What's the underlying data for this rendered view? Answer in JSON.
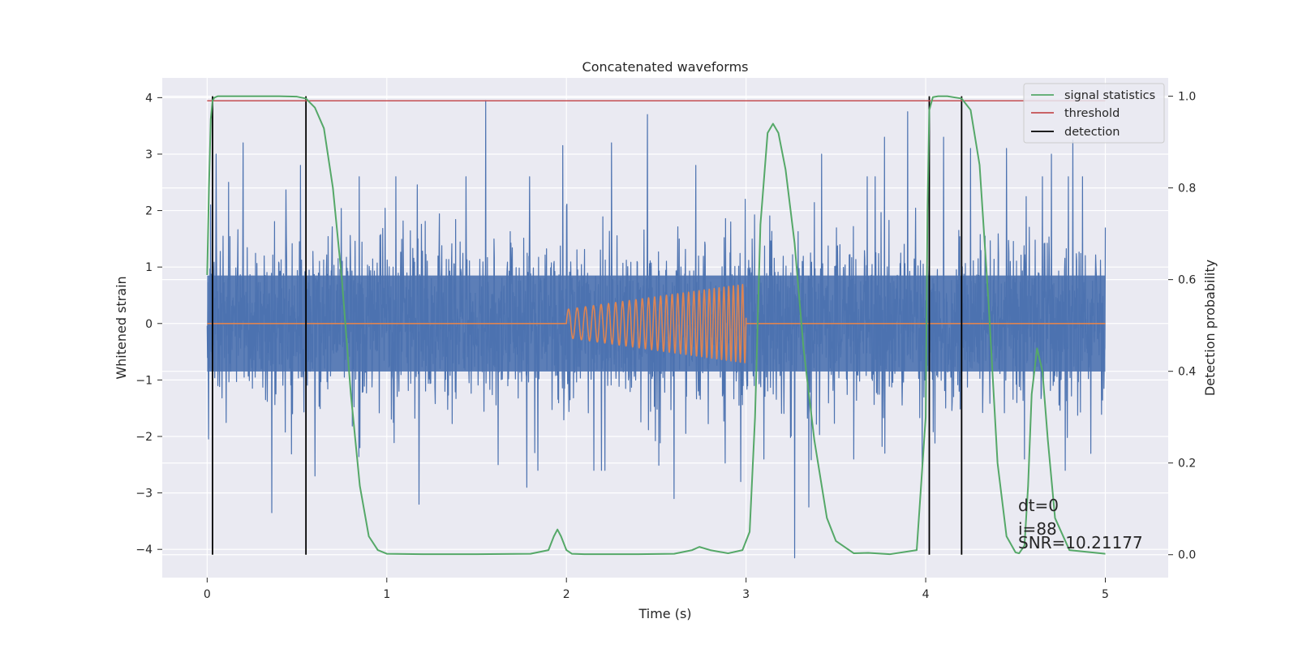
{
  "chart_data": {
    "type": "line",
    "title": "Concatenated waveforms",
    "xlabel": "Time (s)",
    "ylabel": "Whitened strain",
    "y2label": "Detection probability",
    "xlim": [
      -0.25,
      5.35
    ],
    "ylim": [
      -4.5,
      4.35
    ],
    "y2lim": [
      -0.05,
      1.04
    ],
    "xticks": [
      0,
      1,
      2,
      3,
      4,
      5
    ],
    "yticks": [
      -4,
      -3,
      -2,
      -1,
      0,
      1,
      2,
      3,
      4
    ],
    "y2ticks": [
      0.0,
      0.2,
      0.4,
      0.6,
      0.8,
      1.0
    ],
    "y2tick_labels": [
      "0.0",
      "0.2",
      "0.4",
      "0.6",
      "0.8",
      "1.0"
    ],
    "grid": true,
    "legend_position": "top-right",
    "colors": {
      "noise": "#4c72b0",
      "template": "#dd8452",
      "signal_statistics": "#55a868",
      "threshold": "#c44e52",
      "detection": "#000000",
      "background": "#eaeaf2",
      "grid": "#ffffff"
    },
    "series": [
      {
        "id": "noise",
        "axis": "left",
        "style": "noise",
        "x_range": [
          0,
          5
        ],
        "envelope_core": 0.85,
        "peaks": [
          [
            0.02,
            2.1
          ],
          [
            0.05,
            3.0
          ],
          [
            0.12,
            2.5
          ],
          [
            0.2,
            3.2
          ],
          [
            0.36,
            -3.35
          ],
          [
            0.52,
            2.8
          ],
          [
            0.6,
            -2.7
          ],
          [
            0.85,
            -2.2
          ],
          [
            1.05,
            2.6
          ],
          [
            1.18,
            -3.2
          ],
          [
            1.55,
            3.95
          ],
          [
            1.62,
            -2.5
          ],
          [
            1.78,
            -2.9
          ],
          [
            1.98,
            3.15
          ],
          [
            2.25,
            3.2
          ],
          [
            2.45,
            3.7
          ],
          [
            2.6,
            -3.1
          ],
          [
            2.72,
            2.8
          ],
          [
            2.97,
            -2.8
          ],
          [
            3.1,
            -2.4
          ],
          [
            3.27,
            -4.15
          ],
          [
            3.35,
            -3.25
          ],
          [
            3.42,
            3.0
          ],
          [
            3.6,
            -2.4
          ],
          [
            3.77,
            3.3
          ],
          [
            3.9,
            3.75
          ],
          [
            3.98,
            -2.6
          ],
          [
            4.1,
            3.3
          ],
          [
            4.25,
            3.1
          ],
          [
            4.45,
            3.1
          ],
          [
            4.55,
            -2.4
          ],
          [
            4.7,
            3.0
          ],
          [
            4.82,
            3.25
          ],
          [
            4.92,
            -2.3
          ],
          [
            5.0,
            1.7
          ]
        ]
      },
      {
        "id": "template",
        "axis": "left",
        "style": "chirp",
        "x_range": [
          0,
          5
        ],
        "chirp_range": [
          2.0,
          3.0
        ],
        "amplitude_range": [
          0.25,
          0.7
        ]
      },
      {
        "name": "signal statistics",
        "axis": "right",
        "x": [
          0.0,
          0.01,
          0.02,
          0.03,
          0.04,
          0.06,
          0.1,
          0.2,
          0.3,
          0.4,
          0.5,
          0.55,
          0.6,
          0.65,
          0.7,
          0.75,
          0.8,
          0.85,
          0.9,
          0.95,
          1.0,
          1.2,
          1.5,
          1.8,
          1.9,
          1.93,
          1.95,
          1.97,
          2.0,
          2.03,
          2.1,
          2.4,
          2.6,
          2.7,
          2.74,
          2.8,
          2.9,
          2.98,
          3.02,
          3.05,
          3.08,
          3.12,
          3.15,
          3.18,
          3.22,
          3.27,
          3.32,
          3.38,
          3.45,
          3.5,
          3.6,
          3.68,
          3.8,
          3.95,
          4.0,
          4.01,
          4.02,
          4.04,
          4.07,
          4.12,
          4.2,
          4.25,
          4.3,
          4.35,
          4.4,
          4.45,
          4.5,
          4.52,
          4.55,
          4.57,
          4.59,
          4.62,
          4.65,
          4.68,
          4.72,
          4.8,
          5.0
        ],
        "y": [
          0.61,
          0.8,
          0.95,
          0.99,
          0.997,
          1.0,
          1.0,
          1.0,
          1.0,
          1.0,
          0.999,
          0.995,
          0.975,
          0.93,
          0.8,
          0.6,
          0.35,
          0.15,
          0.04,
          0.01,
          0.002,
          0.001,
          0.001,
          0.002,
          0.01,
          0.04,
          0.055,
          0.04,
          0.01,
          0.002,
          0.001,
          0.001,
          0.002,
          0.01,
          0.017,
          0.01,
          0.003,
          0.01,
          0.05,
          0.3,
          0.72,
          0.92,
          0.94,
          0.92,
          0.84,
          0.68,
          0.45,
          0.25,
          0.08,
          0.03,
          0.003,
          0.004,
          0.001,
          0.01,
          0.3,
          0.75,
          0.97,
          0.998,
          1.0,
          1.0,
          0.995,
          0.97,
          0.85,
          0.55,
          0.2,
          0.04,
          0.005,
          0.003,
          0.02,
          0.15,
          0.35,
          0.45,
          0.4,
          0.25,
          0.08,
          0.01,
          0.002
        ]
      },
      {
        "name": "threshold",
        "axis": "right",
        "x": [
          0.0,
          5.0
        ],
        "y": [
          0.99,
          0.99
        ]
      },
      {
        "name": "detection",
        "axis": "right",
        "style": "vlines",
        "x": [
          0.03,
          0.55,
          4.02,
          4.2
        ],
        "y_range": [
          0.0,
          1.0
        ]
      }
    ],
    "annotations": [
      "dt=0",
      "i=88",
      "SNR=10.21177"
    ]
  }
}
